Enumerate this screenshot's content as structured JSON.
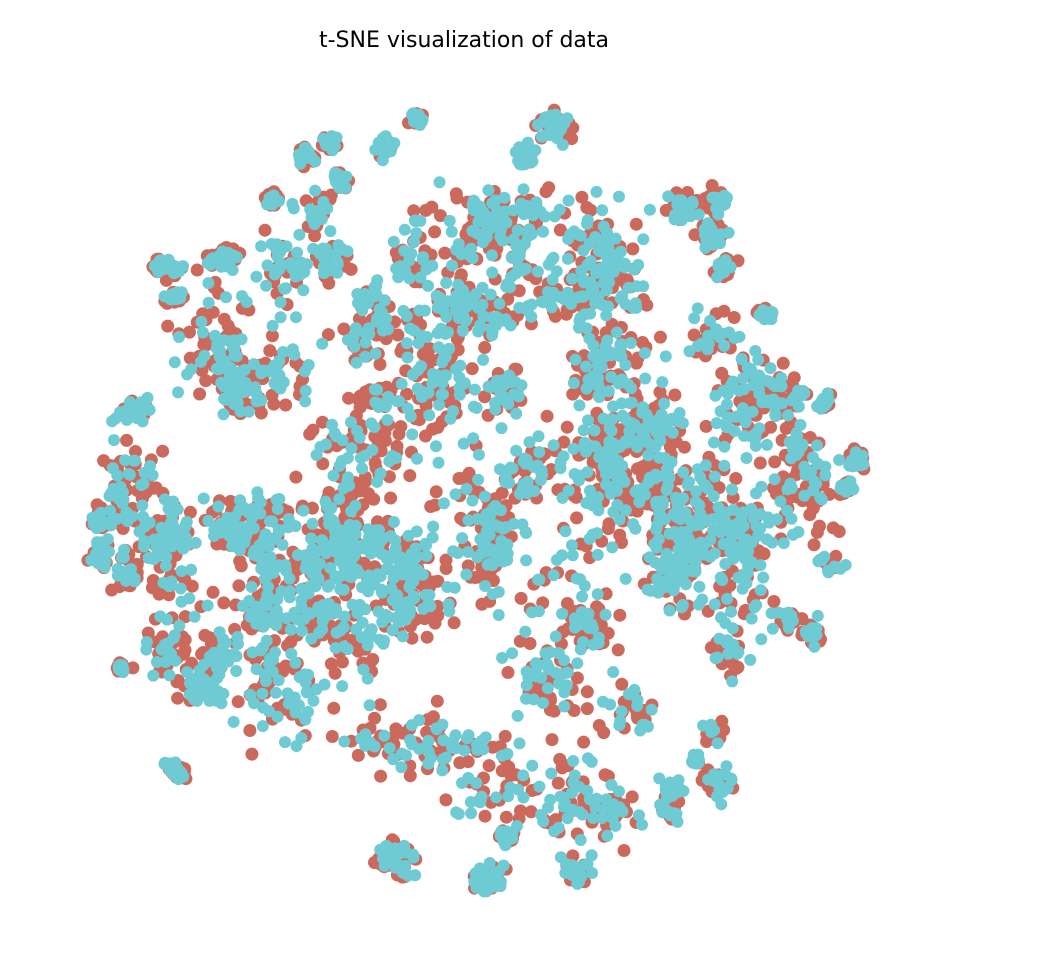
{
  "chart_data": {
    "type": "scatter",
    "title": "t-SNE visualization of data",
    "xlabel": "",
    "ylabel": "",
    "axes_visible": false,
    "grid": false,
    "legend": "none",
    "series": [
      {
        "color": "#cb6a5c",
        "marker": "circle",
        "approx_points": 5000
      },
      {
        "color": "#6fcbd3",
        "marker": "circle",
        "approx_points": 5000
      }
    ],
    "sample_seed": 7
  }
}
